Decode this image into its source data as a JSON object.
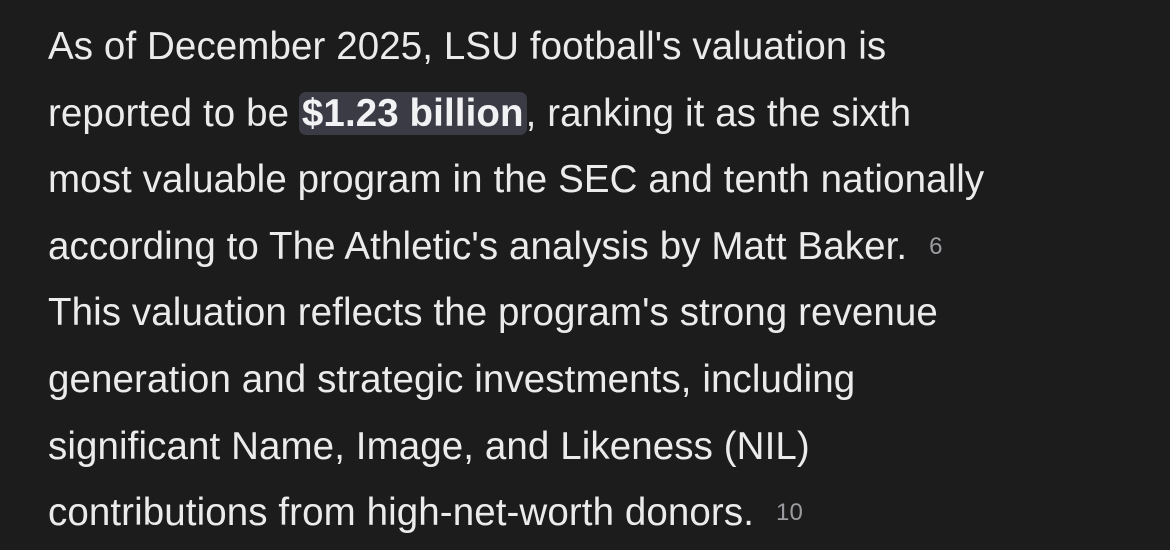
{
  "colors": {
    "background": "#1c1c1d",
    "text": "#ebebec",
    "highlight_bg": "#3a3b45",
    "citation": "#9c9ca0"
  },
  "answer": {
    "line1": "As of December 2025, LSU football's valuation is",
    "line2_before": "reported to be ",
    "highlight": "$1.23 billion",
    "line2_after": ", ranking it as the sixth",
    "line3": "most valuable program in the SEC and tenth nationally",
    "line4": "according to The Athletic's analysis by Matt Baker.",
    "citation_1": "6",
    "line5": "This valuation reflects the program's strong revenue",
    "line6": "generation and strategic investments, including",
    "line7": "significant Name, Image, and Likeness (NIL)",
    "line8": "contributions from high-net-worth donors.",
    "citation_2": "10"
  }
}
